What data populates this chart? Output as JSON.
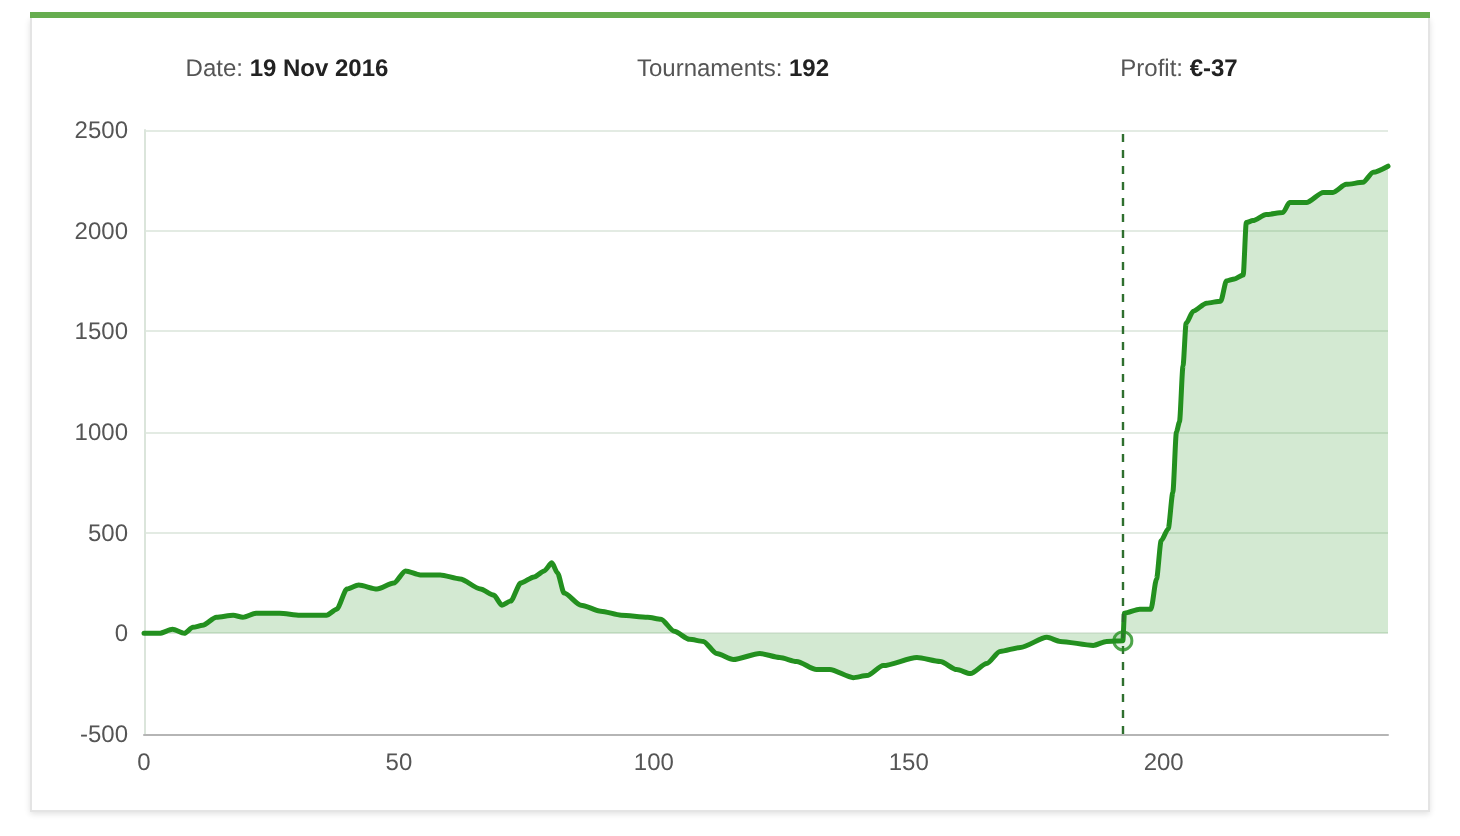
{
  "chart_data": {
    "type": "area",
    "annotations": [
      "Date: 19 Nov 2016",
      "Tournaments: 192",
      "Profit: €-37"
    ],
    "xlim": [
      0,
      244
    ],
    "xticks": [
      0,
      50,
      100,
      150,
      200
    ],
    "ylim": [
      -500,
      2500
    ],
    "yticks": [
      -500,
      0,
      500,
      1000,
      1500,
      2000,
      2500
    ],
    "grid": "y",
    "ref_lines": [
      {
        "axis": "x",
        "value": 192,
        "color": "#2f6f2f",
        "line_style": "dashed"
      }
    ],
    "series": [
      {
        "color": "#23901f",
        "x": [
          0,
          3,
          5.6,
          7.9,
          9.6,
          11.5,
          14.2,
          17.5,
          19.4,
          22,
          26.6,
          30.6,
          35.8,
          37.8,
          39.8,
          42.1,
          45.7,
          49,
          51.3,
          54.2,
          58.1,
          62,
          66,
          68.6,
          70.2,
          71.9,
          73.9,
          76.5,
          78.5,
          80,
          81.1,
          82.4,
          85.7,
          89.6,
          93.6,
          98.8,
          101.4,
          104,
          107,
          109.7,
          112.3,
          115.6,
          120.8,
          124.7,
          128,
          131.9,
          134.5,
          139.1,
          141.8,
          145,
          151.6,
          156.2,
          159.4,
          162.1,
          165.3,
          167.9,
          171.9,
          177.1,
          179.7,
          186.2,
          188.8,
          192,
          192.3,
          195.3,
          197.5,
          198.6,
          199.5,
          200.9,
          201.8,
          202.5,
          203.1,
          203.8,
          204.4,
          205.8,
          208.4,
          211.2,
          212.3,
          213.9,
          215.6,
          216.2,
          217.5,
          220.1,
          223.4,
          224.7,
          228,
          231.3,
          233.2,
          235.8,
          239.1,
          241.1,
          244
        ],
        "values": [
          0,
          0,
          20,
          0,
          30,
          40,
          80,
          90,
          80,
          100,
          100,
          90,
          90,
          120,
          220,
          240,
          220,
          250,
          310,
          290,
          290,
          270,
          220,
          190,
          140,
          160,
          250,
          280,
          310,
          350,
          300,
          200,
          140,
          110,
          90,
          80,
          70,
          10,
          -30,
          -40,
          -100,
          -130,
          -100,
          -120,
          -140,
          -180,
          -180,
          -220,
          -210,
          -160,
          -120,
          -140,
          -180,
          -200,
          -150,
          -90,
          -70,
          -20,
          -40,
          -60,
          -40,
          -37,
          100,
          120,
          120,
          270,
          460,
          520,
          700,
          1000,
          1050,
          1330,
          1540,
          1600,
          1640,
          1650,
          1750,
          1760,
          1780,
          2040,
          2050,
          2080,
          2090,
          2140,
          2140,
          2190,
          2190,
          2230,
          2240,
          2290,
          2320
        ]
      },
      {
        "type": "scatter",
        "color": "#23901f",
        "marker": "circle",
        "x": [
          192
        ],
        "values": [
          -37
        ]
      }
    ]
  }
}
